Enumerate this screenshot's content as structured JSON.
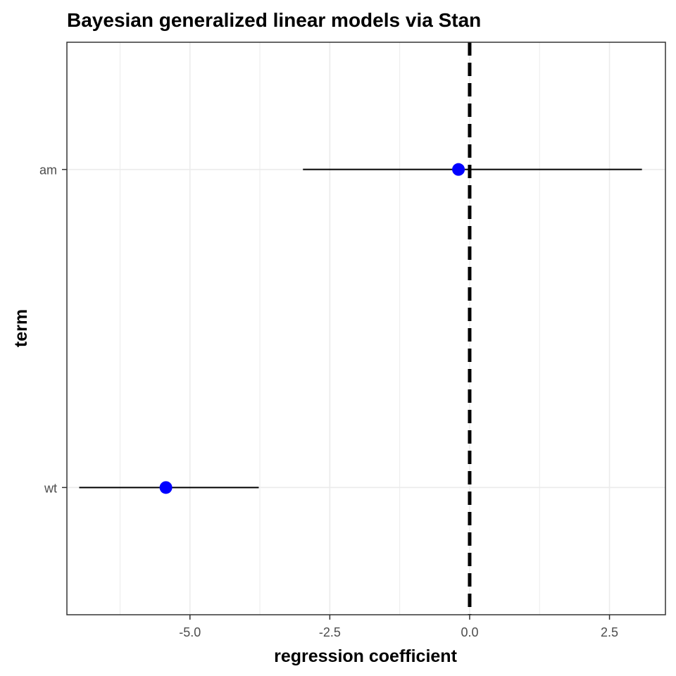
{
  "chart_data": {
    "type": "coefficient-plot",
    "title": "Bayesian generalized linear models via Stan",
    "xlabel": "regression coefficient",
    "ylabel": "term",
    "xlim": [
      -7.2,
      3.5
    ],
    "x_ticks": [
      -5.0,
      -2.5,
      0.0,
      2.5
    ],
    "x_tick_labels": [
      "-5.0",
      "-2.5",
      "0.0",
      "2.5"
    ],
    "categories": [
      "wt",
      "am"
    ],
    "series": [
      {
        "estimates": [
          -5.43,
          -0.2
        ],
        "conf_low": [
          -6.98,
          -2.98
        ],
        "conf_high": [
          -3.77,
          3.08
        ]
      }
    ],
    "reference_line": {
      "x": 0,
      "style": "dashed"
    },
    "grid": true,
    "point_color": "#0000ff",
    "line_color": "#000000"
  }
}
